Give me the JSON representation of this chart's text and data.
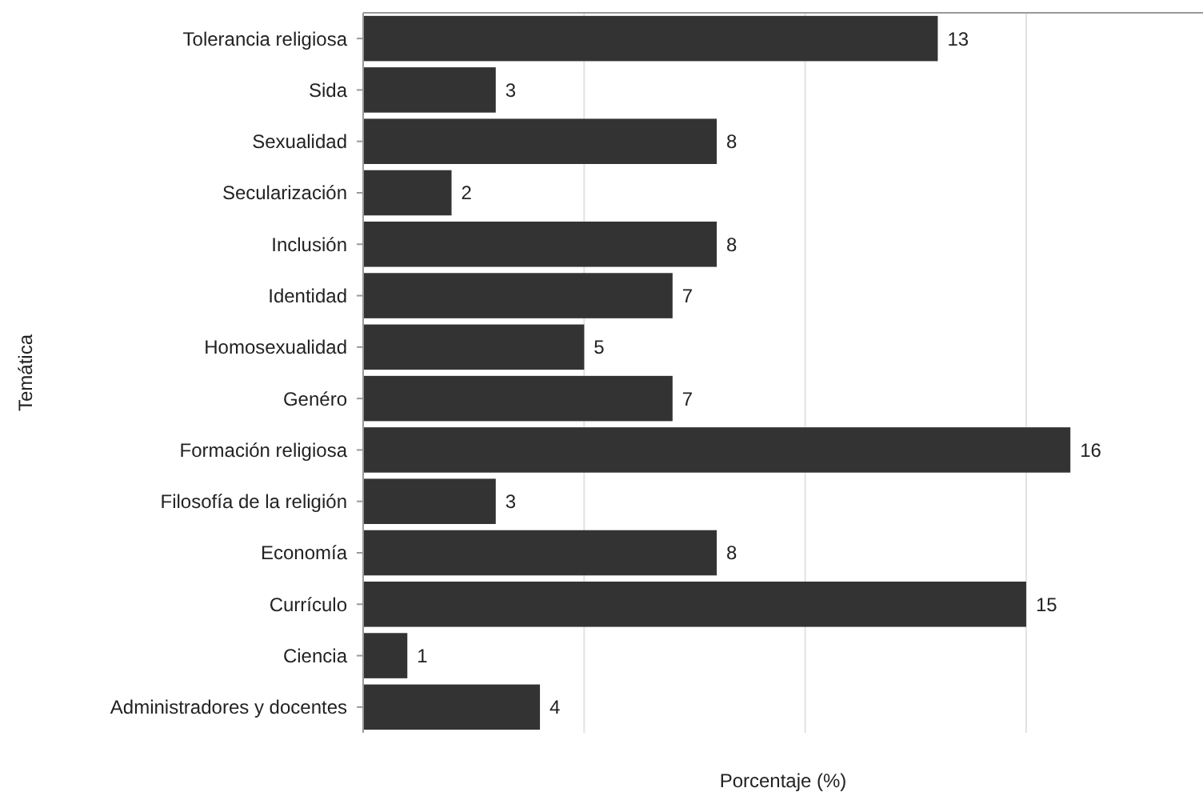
{
  "chart_data": {
    "type": "bar",
    "orientation": "horizontal",
    "xlabel": "Porcentaje  (%)",
    "ylabel": "Temática",
    "categories": [
      "Tolerancia religiosa",
      "Sida",
      "Sexualidad",
      "Secularización",
      "Inclusión",
      "Identidad",
      "Homosexualidad",
      "Genéro",
      "Formación religiosa",
      "Filosofía de la religión",
      "Economía",
      "Currículo",
      "Ciencia",
      "Administradores y docentes"
    ],
    "values": [
      13,
      3,
      8,
      2,
      8,
      7,
      5,
      7,
      16,
      3,
      8,
      15,
      1,
      4
    ],
    "color": "#333333",
    "data_labels": true,
    "xlim": [
      0,
      19
    ],
    "xticks": [
      {
        "value": 5,
        "label": null
      },
      {
        "value": 10,
        "label": null
      },
      {
        "value": 15,
        "label": null
      }
    ],
    "tick_labels": "y",
    "grid": "x"
  }
}
